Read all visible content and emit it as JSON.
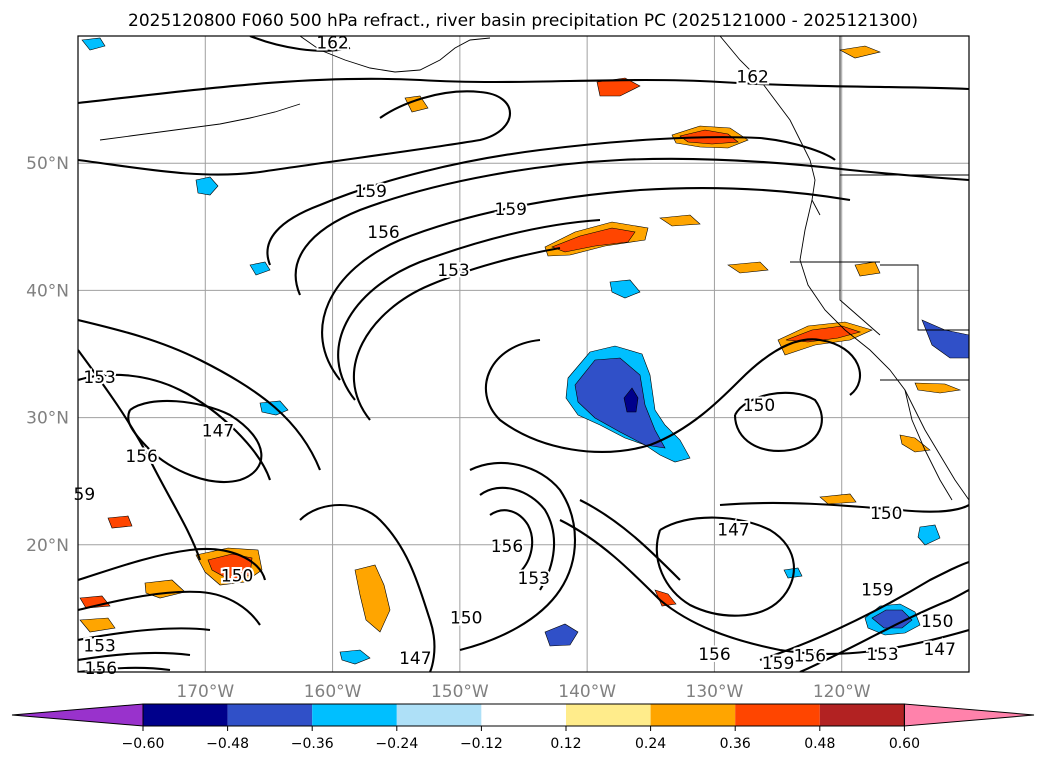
{
  "figure": {
    "title": "2025120800 F060 500 hPa refract., river basin precipitation PC (2025121000 - 2025121300)"
  },
  "map": {
    "projection": "cylindrical",
    "lon_range": [
      -180,
      -110
    ],
    "lat_range": [
      10,
      60
    ],
    "lon_ticks": [
      {
        "lon": -170,
        "label": "170°W"
      },
      {
        "lon": -160,
        "label": "160°W"
      },
      {
        "lon": -150,
        "label": "150°W"
      },
      {
        "lon": -140,
        "label": "140°W"
      },
      {
        "lon": -130,
        "label": "130°W"
      },
      {
        "lon": -120,
        "label": "120°W"
      }
    ],
    "lat_ticks": [
      {
        "lat": 50,
        "label": "50°N"
      },
      {
        "lat": 40,
        "label": "40°N"
      },
      {
        "lat": 30,
        "label": "30°N"
      },
      {
        "lat": 20,
        "label": "20°N"
      }
    ],
    "grid": true,
    "gridline_color": "#a0a0a0",
    "frame_color": "#000000",
    "contour_color": "#000000",
    "coast_color": "#000000"
  },
  "contour_labels": [
    {
      "text": "162",
      "lon": -160,
      "lat": 59.5
    },
    {
      "text": "162",
      "lon": -127,
      "lat": 56.8
    },
    {
      "text": "159",
      "lon": -157,
      "lat": 47.8
    },
    {
      "text": "156",
      "lon": -156,
      "lat": 44.6
    },
    {
      "text": "153",
      "lon": -150.5,
      "lat": 41.6
    },
    {
      "text": "159",
      "lon": -146,
      "lat": 46.4
    },
    {
      "text": "153",
      "lon": -178.3,
      "lat": 33.2
    },
    {
      "text": "147",
      "lon": -169,
      "lat": 29.0
    },
    {
      "text": "156",
      "lon": -175,
      "lat": 27.0
    },
    {
      "text": "59",
      "lon": -179.5,
      "lat": 24.0
    },
    {
      "text": "150",
      "lon": -167.5,
      "lat": 17.6
    },
    {
      "text": "150",
      "lon": -126.5,
      "lat": 31.0
    },
    {
      "text": "147",
      "lon": -128.5,
      "lat": 21.2
    },
    {
      "text": "150",
      "lon": -116.5,
      "lat": 22.5
    },
    {
      "text": "156",
      "lon": -146.3,
      "lat": 19.9
    },
    {
      "text": "153",
      "lon": -144.2,
      "lat": 17.4
    },
    {
      "text": "150",
      "lon": -149.5,
      "lat": 14.3
    },
    {
      "text": "147",
      "lon": -153.5,
      "lat": 11.1
    },
    {
      "text": "156",
      "lon": -130,
      "lat": 11.4
    },
    {
      "text": "159",
      "lon": -125,
      "lat": 10.7
    },
    {
      "text": "156",
      "lon": -122.5,
      "lat": 11.3
    },
    {
      "text": "153",
      "lon": -116.8,
      "lat": 11.4
    },
    {
      "text": "159",
      "lon": -117.2,
      "lat": 16.5
    },
    {
      "text": "150",
      "lon": -112.5,
      "lat": 14.0
    },
    {
      "text": "147",
      "lon": -112.3,
      "lat": 11.8
    },
    {
      "text": "153",
      "lon": -178.3,
      "lat": 12.1
    },
    {
      "text": "156",
      "lon": -178.2,
      "lat": 10.3
    }
  ],
  "colorbar": {
    "ticks": [
      "−0.60",
      "−0.48",
      "−0.36",
      "−0.24",
      "−0.12",
      "0.12",
      "0.24",
      "0.36",
      "0.48",
      "0.60"
    ],
    "under_color": "#9932cc",
    "over_color": "#ff82ab",
    "colors": [
      "#00008b",
      "#3050c8",
      "#00bfff",
      "#aee0f7",
      "#ffffff",
      "#ffec8b",
      "#ffa500",
      "#ff4500",
      "#b22222"
    ]
  }
}
